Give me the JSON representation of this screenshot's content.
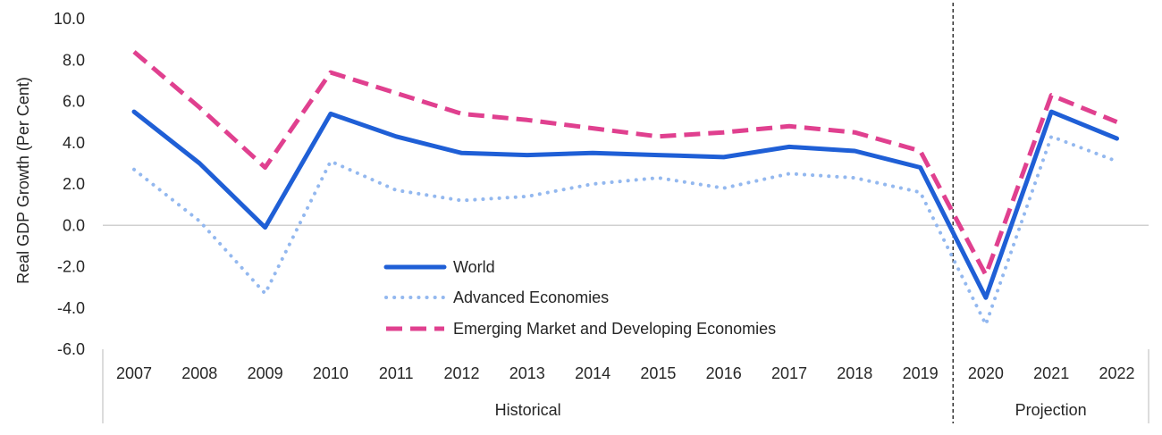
{
  "chart_data": {
    "type": "line",
    "ylabel": "Real GDP Growth (Per Cent)",
    "xlabel": "",
    "title": "",
    "ylim": [
      -6.0,
      10.0
    ],
    "yticks": [
      "10.0",
      "8.0",
      "6.0",
      "4.0",
      "2.0",
      "0.0",
      "-2.0",
      "-4.0",
      "-6.0"
    ],
    "yticks_values": [
      10,
      8,
      6,
      4,
      2,
      0,
      -2,
      -4,
      -6
    ],
    "categories": [
      "2007",
      "2008",
      "2009",
      "2010",
      "2011",
      "2012",
      "2013",
      "2014",
      "2015",
      "2016",
      "2017",
      "2018",
      "2019",
      "2020",
      "2021",
      "2022"
    ],
    "groups": [
      {
        "label": "Historical",
        "from": "2007",
        "to": "2019"
      },
      {
        "label": "Projection",
        "from": "2020",
        "to": "2022"
      }
    ],
    "grid": false,
    "legend_position": "bottom-center",
    "series": [
      {
        "name": "World",
        "style": "solid",
        "color": "#1f5fd6",
        "values": [
          5.5,
          3.0,
          -0.1,
          5.4,
          4.3,
          3.5,
          3.4,
          3.5,
          3.4,
          3.3,
          3.8,
          3.6,
          2.8,
          -3.5,
          5.5,
          4.2
        ]
      },
      {
        "name": "Advanced Economies",
        "style": "dotted",
        "color": "#93b8ef",
        "values": [
          2.7,
          0.2,
          -3.3,
          3.1,
          1.7,
          1.2,
          1.4,
          2.0,
          2.3,
          1.8,
          2.5,
          2.3,
          1.6,
          -4.8,
          4.3,
          3.1
        ]
      },
      {
        "name": "Emerging Market and Developing Economies",
        "style": "dashed",
        "color": "#e0408f",
        "values": [
          8.4,
          5.7,
          2.8,
          7.4,
          6.4,
          5.4,
          5.1,
          4.7,
          4.3,
          4.5,
          4.8,
          4.5,
          3.6,
          -2.4,
          6.3,
          5.0
        ]
      }
    ]
  }
}
